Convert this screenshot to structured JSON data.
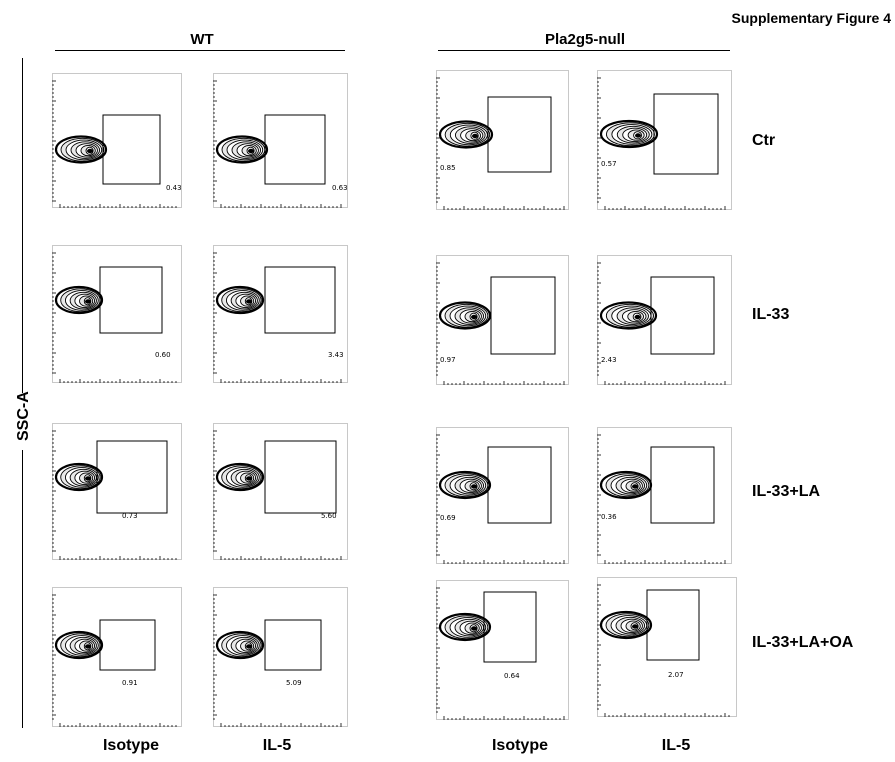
{
  "figure_title": "Supplementary Figure 4",
  "groups": [
    {
      "label": "WT"
    },
    {
      "label": "Pla2g5-null"
    }
  ],
  "y_axis_label": "SSC-A",
  "row_labels": [
    "Ctr",
    "IL-33",
    "IL-33+LA",
    "IL-33+LA+OA"
  ],
  "column_labels": [
    "Isotype",
    "IL-5",
    "Isotype",
    "IL-5"
  ],
  "panels": [
    {
      "group": "WT",
      "row": "Ctr",
      "column": "Isotype",
      "gate_percent": "0.43"
    },
    {
      "group": "WT",
      "row": "Ctr",
      "column": "IL-5",
      "gate_percent": "0.63"
    },
    {
      "group": "Pla2g5-null",
      "row": "Ctr",
      "column": "Isotype",
      "gate_percent": "0.85"
    },
    {
      "group": "Pla2g5-null",
      "row": "Ctr",
      "column": "IL-5",
      "gate_percent": "0.57"
    },
    {
      "group": "WT",
      "row": "IL-33",
      "column": "Isotype",
      "gate_percent": "0.60"
    },
    {
      "group": "WT",
      "row": "IL-33",
      "column": "IL-5",
      "gate_percent": "3.43"
    },
    {
      "group": "Pla2g5-null",
      "row": "IL-33",
      "column": "Isotype",
      "gate_percent": "0.97"
    },
    {
      "group": "Pla2g5-null",
      "row": "IL-33",
      "column": "IL-5",
      "gate_percent": "2.43"
    },
    {
      "group": "WT",
      "row": "IL-33+LA",
      "column": "Isotype",
      "gate_percent": "0.73"
    },
    {
      "group": "WT",
      "row": "IL-33+LA",
      "column": "IL-5",
      "gate_percent": "5.60"
    },
    {
      "group": "Pla2g5-null",
      "row": "IL-33+LA",
      "column": "Isotype",
      "gate_percent": "0.69"
    },
    {
      "group": "Pla2g5-null",
      "row": "IL-33+LA",
      "column": "IL-5",
      "gate_percent": "0.36"
    },
    {
      "group": "WT",
      "row": "IL-33+LA+OA",
      "column": "Isotype",
      "gate_percent": "0.91"
    },
    {
      "group": "WT",
      "row": "IL-33+LA+OA",
      "column": "IL-5",
      "gate_percent": "5.09"
    },
    {
      "group": "Pla2g5-null",
      "row": "IL-33+LA+OA",
      "column": "Isotype",
      "gate_percent": "0.64"
    },
    {
      "group": "Pla2g5-null",
      "row": "IL-33+LA+OA",
      "column": "IL-5",
      "gate_percent": "2.07"
    }
  ]
}
